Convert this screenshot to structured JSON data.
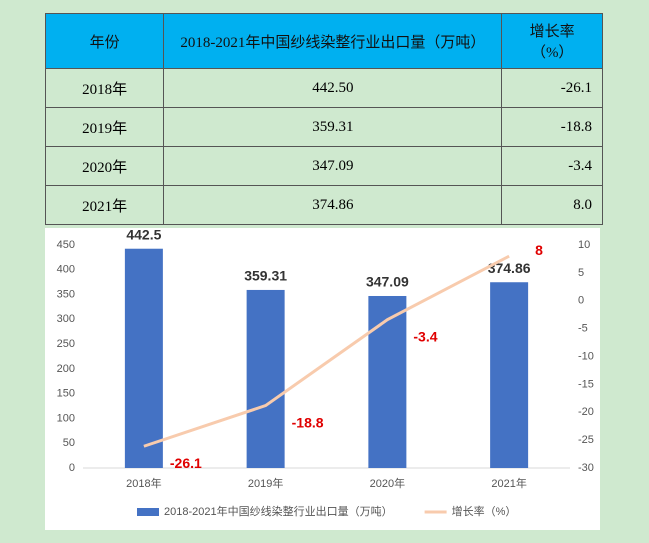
{
  "table": {
    "header": [
      "年份",
      "2018-2021年中国纱线染整行业出口量（万吨）",
      "增长率（%）"
    ],
    "rows": [
      [
        "2018年",
        "442.50",
        "-26.1"
      ],
      [
        "2019年",
        "359.31",
        "-18.8"
      ],
      [
        "2020年",
        "347.09",
        "-3.4"
      ],
      [
        "2021年",
        "374.86",
        "8.0"
      ]
    ]
  },
  "chart_data": {
    "type": "combo",
    "categories": [
      "2018年",
      "2019年",
      "2020年",
      "2021年"
    ],
    "series": [
      {
        "name": "2018-2021年中国纱线染整行业出口量（万吨）",
        "type": "bar",
        "color": "#4472c4",
        "values": [
          442.5,
          359.31,
          347.09,
          374.86
        ]
      },
      {
        "name": "增长率（%）",
        "type": "line",
        "axis": "y2",
        "color": "#f8cbad",
        "values": [
          -26.1,
          -18.8,
          -3.4,
          8
        ]
      }
    ],
    "ylim": [
      0,
      450
    ],
    "yticks": [
      0,
      50,
      100,
      150,
      200,
      250,
      300,
      350,
      400,
      450
    ],
    "y2lim": [
      -30,
      10
    ],
    "y2ticks": [
      -30,
      -25,
      -20,
      -15,
      -10,
      -5,
      0,
      5,
      10
    ],
    "legend": "bottom"
  }
}
